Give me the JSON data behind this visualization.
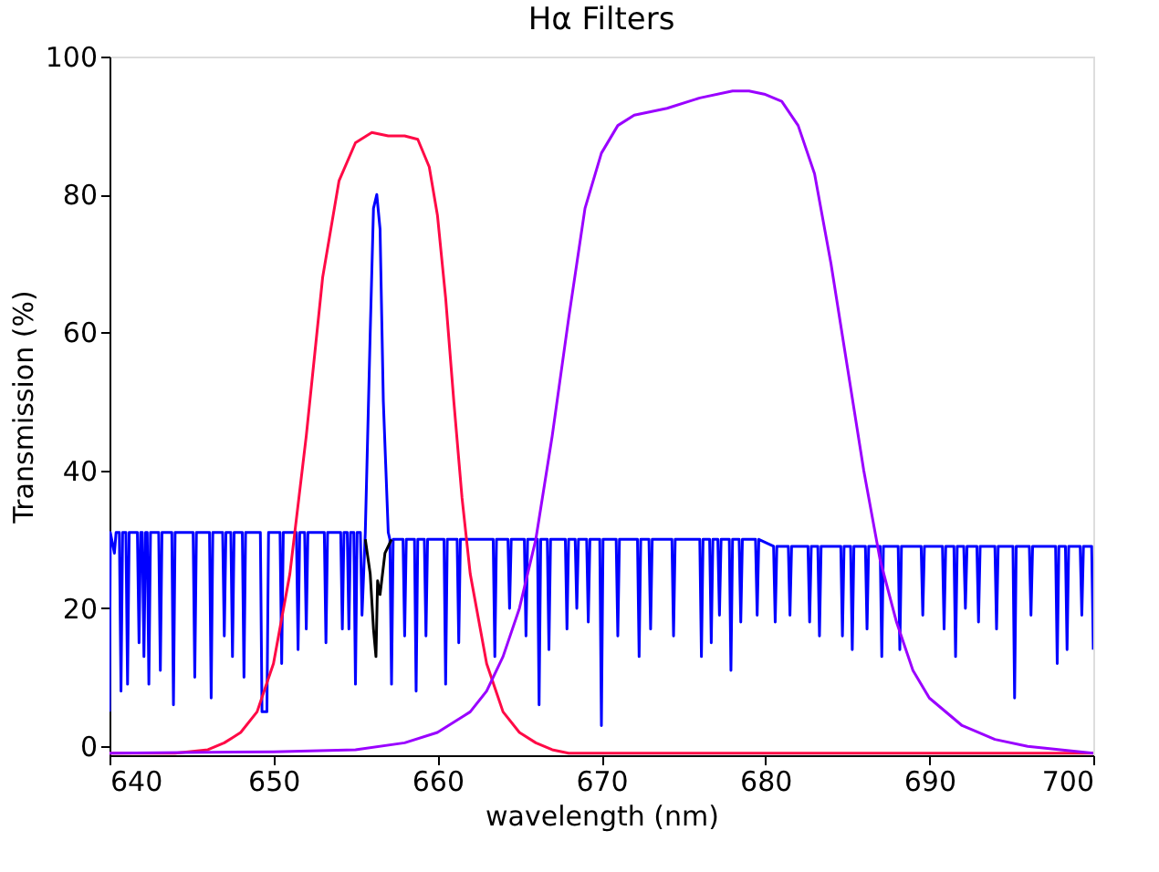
{
  "chart_data": {
    "type": "line",
    "title": "Hα Filters",
    "xlabel": "wavelength (nm)",
    "ylabel": "Transmission (%)",
    "xlim": [
      640,
      700
    ],
    "ylim": [
      -1.3,
      100
    ],
    "xticks": [
      640,
      650,
      660,
      670,
      680,
      690,
      700
    ],
    "yticks": [
      0,
      20,
      40,
      60,
      80,
      100
    ],
    "grid": false,
    "line_style": "solid",
    "marker": "none",
    "series": [
      {
        "color": "#0000ff",
        "x": [
          640,
          640.05,
          640.3,
          640.4,
          640.6,
          640.7,
          640.8,
          641.0,
          641.1,
          641.2,
          641.7,
          641.8,
          641.9,
          642.0,
          642.1,
          642.2,
          642.3,
          642.4,
          642.5,
          643.0,
          643.1,
          643.2,
          643.8,
          643.9,
          644.0,
          645.1,
          645.2,
          645.3,
          646.1,
          646.2,
          646.3,
          646.9,
          647.0,
          647.1,
          647.4,
          647.5,
          647.6,
          648.1,
          648.2,
          648.3,
          649.2,
          649.3,
          649.6,
          649.7,
          650.4,
          650.5,
          650.6,
          651.4,
          651.5,
          651.6,
          651.9,
          652.0,
          652.1,
          653.1,
          653.2,
          653.3,
          654.1,
          654.2,
          654.3,
          654.5,
          654.6,
          654.7,
          654.9,
          655.0,
          655.1,
          655.3,
          655.4,
          655.6,
          655.9,
          656.1,
          656.3,
          656.5,
          656.7,
          657.0,
          657.1,
          657.2,
          657.3,
          657.9,
          658.0,
          658.1,
          658.6,
          658.7,
          658.8,
          659.2,
          659.3,
          659.4,
          660.4,
          660.5,
          660.6,
          661.2,
          661.3,
          661.4,
          663.4,
          663.5,
          663.6,
          664.3,
          664.4,
          664.5,
          665.3,
          665.4,
          665.5,
          666.1,
          666.2,
          666.3,
          666.7,
          666.8,
          666.9,
          667.8,
          667.9,
          668.0,
          668.4,
          668.5,
          668.6,
          669.1,
          669.2,
          669.3,
          669.9,
          670.0,
          670.1,
          670.9,
          671.0,
          671.1,
          672.2,
          672.3,
          672.4,
          672.9,
          673.0,
          673.1,
          674.3,
          674.4,
          674.5,
          676.0,
          676.1,
          676.2,
          676.6,
          676.7,
          676.8,
          677.1,
          677.2,
          677.3,
          677.8,
          677.9,
          678.0,
          678.4,
          678.5,
          678.6,
          679.4,
          679.5,
          679.6,
          680.5,
          680.6,
          680.7,
          681.4,
          681.5,
          681.6,
          682.6,
          682.7,
          682.8,
          683.2,
          683.3,
          683.4,
          684.6,
          684.7,
          684.8,
          685.2,
          685.3,
          685.4,
          686.1,
          686.2,
          686.3,
          687.0,
          687.1,
          687.2,
          688.1,
          688.2,
          688.3,
          689.5,
          689.6,
          689.7,
          690.8,
          690.9,
          691.0,
          691.5,
          691.6,
          691.7,
          692.1,
          692.2,
          692.3,
          692.9,
          693.0,
          693.1,
          694.0,
          694.1,
          694.2,
          695.1,
          695.2,
          695.3,
          696.1,
          696.2,
          696.3,
          697.7,
          697.8,
          697.9,
          698.3,
          698.4,
          698.5,
          699.2,
          699.3,
          699.4,
          699.9,
          700
        ],
        "values": [
          5,
          31,
          28,
          31,
          31,
          8,
          31,
          31,
          9,
          31,
          31,
          15,
          31,
          31,
          13,
          31,
          31,
          9,
          31,
          31,
          11,
          31,
          31,
          6,
          31,
          31,
          10,
          31,
          31,
          7,
          31,
          31,
          16,
          31,
          31,
          13,
          31,
          31,
          10,
          31,
          31,
          5,
          5,
          31,
          31,
          12,
          31,
          31,
          14,
          31,
          31,
          17,
          31,
          31,
          15,
          31,
          31,
          17,
          31,
          31,
          17,
          31,
          31,
          9,
          31,
          31,
          19,
          31,
          60,
          78,
          80,
          75,
          50,
          31,
          30,
          9,
          30,
          30,
          16,
          30,
          30,
          8,
          30,
          30,
          16,
          30,
          30,
          9,
          30,
          30,
          15,
          30,
          30,
          13,
          30,
          30,
          20,
          30,
          30,
          16,
          30,
          30,
          6,
          30,
          30,
          14,
          30,
          30,
          17,
          30,
          30,
          20,
          30,
          30,
          18,
          30,
          30,
          3,
          30,
          30,
          16,
          30,
          30,
          13,
          30,
          30,
          17,
          30,
          30,
          16,
          30,
          30,
          13,
          30,
          30,
          15,
          30,
          30,
          19,
          30,
          30,
          11,
          30,
          30,
          18,
          30,
          30,
          19,
          30,
          29,
          18,
          29,
          29,
          19,
          29,
          29,
          18,
          29,
          29,
          16,
          29,
          29,
          16,
          29,
          29,
          14,
          29,
          29,
          17,
          29,
          29,
          13,
          29,
          29,
          14,
          29,
          29,
          19,
          29,
          29,
          17,
          29,
          29,
          13,
          29,
          29,
          20,
          29,
          29,
          18,
          29,
          29,
          17,
          29,
          29,
          7,
          29,
          29,
          19,
          29,
          29,
          12,
          29,
          29,
          14,
          29,
          29,
          19,
          29,
          29,
          14
        ]
      },
      {
        "color": "#000000",
        "x": [
          655.6,
          655.9,
          656.1,
          656.25,
          656.35,
          656.5,
          656.8,
          657.2
        ],
        "values": [
          30,
          25,
          17,
          13,
          24,
          22,
          28,
          30
        ]
      },
      {
        "color": "#ff0a46",
        "x": [
          640,
          644,
          646,
          647,
          648,
          649,
          650,
          651,
          652,
          653,
          654,
          655,
          656,
          657,
          658,
          658.8,
          659.5,
          660,
          660.5,
          661,
          661.5,
          662,
          663,
          664,
          665,
          666,
          667,
          668,
          700
        ],
        "values": [
          -1,
          -1,
          -0.5,
          0.5,
          2,
          5,
          12,
          25,
          45,
          68,
          82,
          87.5,
          89,
          88.5,
          88.5,
          88,
          84,
          77,
          65,
          50,
          36,
          25,
          12,
          5,
          2,
          0.5,
          -0.5,
          -1,
          -1
        ]
      },
      {
        "color": "#9a00ff",
        "x": [
          640,
          650,
          655,
          658,
          660,
          662,
          663,
          664,
          665,
          666,
          667,
          668,
          669,
          670,
          671,
          672,
          674,
          676,
          678,
          679,
          680,
          681,
          682,
          683,
          684,
          685,
          686,
          687,
          688,
          689,
          690,
          692,
          694,
          696,
          698,
          700
        ],
        "values": [
          -1,
          -0.8,
          -0.5,
          0.5,
          2,
          5,
          8,
          13,
          20,
          30,
          45,
          62,
          78,
          86,
          90,
          91.5,
          92.5,
          94,
          95,
          95,
          94.5,
          93.5,
          90,
          83,
          70,
          55,
          40,
          27,
          18,
          11,
          7,
          3,
          1,
          0,
          -0.5,
          -1
        ]
      }
    ]
  }
}
